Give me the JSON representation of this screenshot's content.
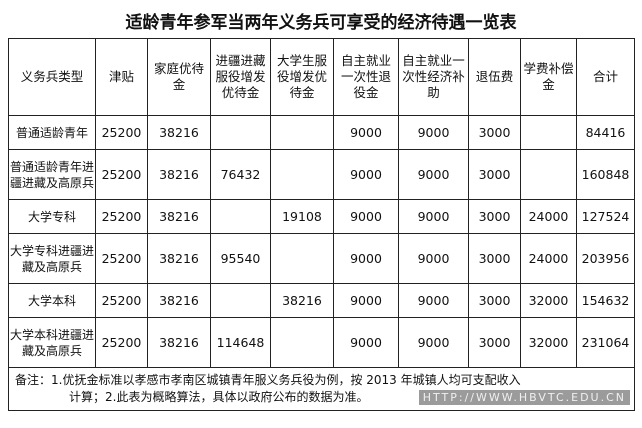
{
  "title": "适龄青年参军当两年义务兵可享受的经济待遇一览表",
  "headers": [
    "义务兵类型",
    "津贴",
    "家庭优待金",
    "进疆进藏服役增发优待金",
    "大学生服役增发优待金",
    "自主就业一次性退役金",
    "自主就业一次性经济补助",
    "退伍费",
    "学费补偿金",
    "合计"
  ],
  "rows": [
    [
      "普通适龄青年",
      "25200",
      "38216",
      "",
      "",
      "9000",
      "9000",
      "3000",
      "",
      "84416"
    ],
    [
      "普通适龄青年进疆进藏及高原兵",
      "25200",
      "38216",
      "76432",
      "",
      "9000",
      "9000",
      "3000",
      "",
      "160848"
    ],
    [
      "大学专科",
      "25200",
      "38216",
      "",
      "19108",
      "9000",
      "9000",
      "3000",
      "24000",
      "127524"
    ],
    [
      "大学专科进疆进藏及高原兵",
      "25200",
      "38216",
      "95540",
      "",
      "9000",
      "9000",
      "3000",
      "24000",
      "203956"
    ],
    [
      "大学本科",
      "25200",
      "38216",
      "",
      "38216",
      "9000",
      "9000",
      "3000",
      "32000",
      "154632"
    ],
    [
      "大学本科进疆进藏及高原兵",
      "25200",
      "38216",
      "114648",
      "",
      "9000",
      "9000",
      "3000",
      "32000",
      "231064"
    ]
  ],
  "note_line1": "备注：1.优抚金标准以孝感市孝南区城镇青年服义务兵役为例，按 2013 年城镇人均可支配收入",
  "note_line2": "计算；2.此表为概略算法，具体以政府公布的数据为准。",
  "watermark": "HTTP://WWW.HBVTC.EDU.CN"
}
